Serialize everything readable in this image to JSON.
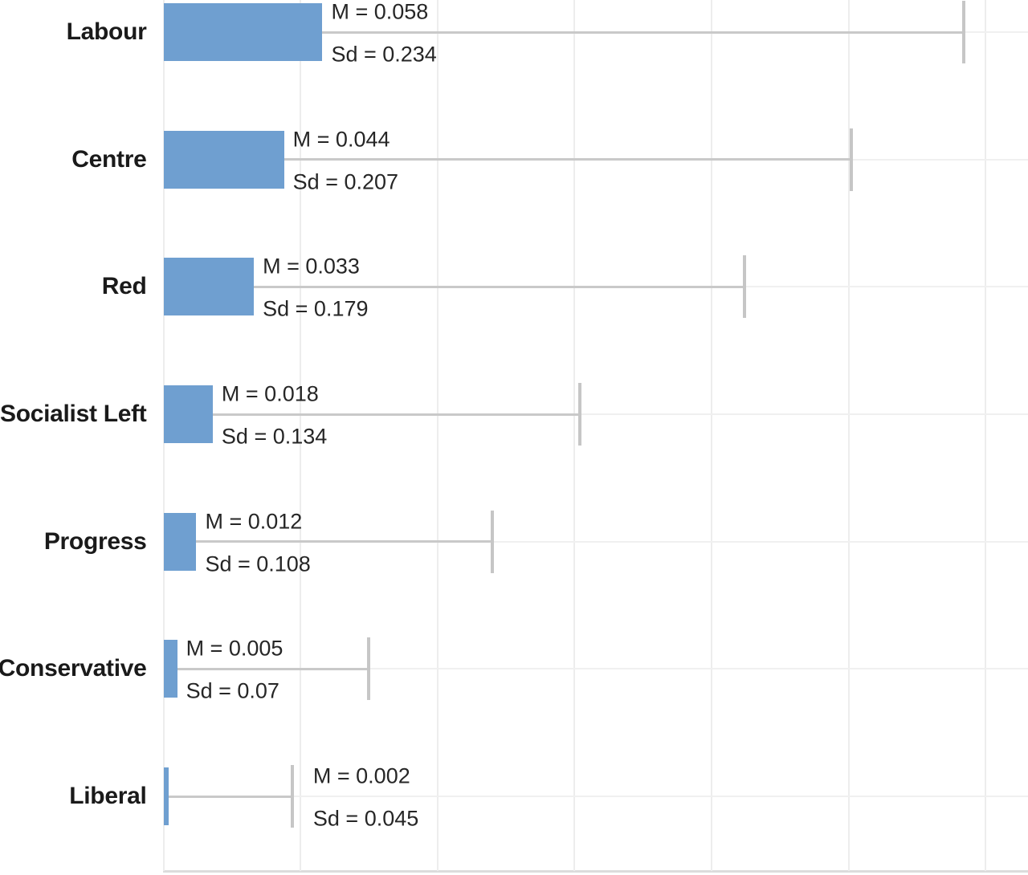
{
  "chart_data": {
    "type": "bar",
    "orientation": "horizontal",
    "title": "",
    "xlabel": "",
    "ylabel": "",
    "xlim": [
      0,
      0.315
    ],
    "x_grid_step": 0.05,
    "grid": "on",
    "legend": "none",
    "error_bar_rule": "line with end cap drawn from bar end to mean + sd",
    "categories": [
      "Labour",
      "Centre",
      "Red",
      "Socialist Left",
      "Progress",
      "Conservative",
      "Liberal"
    ],
    "series": [
      {
        "name": "Mean",
        "values": [
          0.058,
          0.044,
          0.033,
          0.018,
          0.012,
          0.005,
          0.002
        ]
      },
      {
        "name": "Sd",
        "values": [
          0.234,
          0.207,
          0.179,
          0.134,
          0.108,
          0.07,
          0.045
        ]
      }
    ],
    "rows": [
      {
        "label": "Labour",
        "mean": 0.058,
        "sd": 0.234,
        "m_label": "M = 0.058",
        "sd_label": "Sd = 0.234"
      },
      {
        "label": "Centre",
        "mean": 0.044,
        "sd": 0.207,
        "m_label": "M = 0.044",
        "sd_label": "Sd = 0.207"
      },
      {
        "label": "Red",
        "mean": 0.033,
        "sd": 0.179,
        "m_label": "M = 0.033",
        "sd_label": "Sd = 0.179"
      },
      {
        "label": "Socialist Left",
        "mean": 0.018,
        "sd": 0.134,
        "m_label": "M = 0.018",
        "sd_label": "Sd = 0.134"
      },
      {
        "label": "Progress",
        "mean": 0.012,
        "sd": 0.108,
        "m_label": "M = 0.012",
        "sd_label": "Sd = 0.108"
      },
      {
        "label": "Conservative",
        "mean": 0.005,
        "sd": 0.07,
        "m_label": "M = 0.005",
        "sd_label": "Sd = 0.07"
      },
      {
        "label": "Liberal",
        "mean": 0.002,
        "sd": 0.045,
        "m_label": "M = 0.002",
        "sd_label": "Sd = 0.045"
      }
    ],
    "colors": {
      "bar": "#6f9fd0",
      "error_bar": "#c9c9c9",
      "gridline": "#ededed",
      "axis_line": "#dcdcdc",
      "category_text": "#1a1a1a",
      "annotation_text": "#262626",
      "background": "#ffffff"
    }
  }
}
